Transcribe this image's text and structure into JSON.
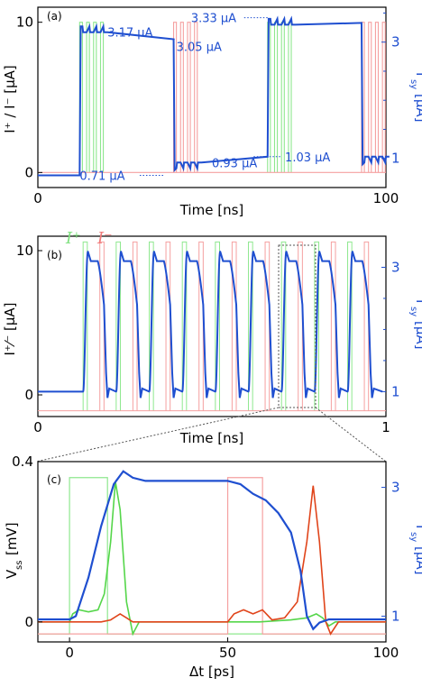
{
  "colors": {
    "ip": "#8ee88e",
    "im": "#f5a0a0",
    "isy": "#1f4fd0",
    "vss_red": "#e0441a",
    "vss_green": "#55d64a",
    "axis": "#000000"
  },
  "chart_data": [
    {
      "panel": "(a)",
      "type": "line",
      "xlabel": "Time [ns]",
      "ylabel": "I⁺ / I⁻ [μA]",
      "ylabel_right_main": "I",
      "ylabel_right_sub": "sy",
      "ylabel_right_unit": "[μA]",
      "xlim": [
        0,
        100
      ],
      "ylim": [
        -1,
        11
      ],
      "ylim_right": [
        0.5,
        3.6
      ],
      "x_ticks": [
        "0",
        "100"
      ],
      "y_ticks": [
        "0",
        "10"
      ],
      "y_right_ticks": [
        "1",
        "3"
      ],
      "grid": false,
      "annotations": [
        {
          "text": "3.17 μA",
          "value": 3.17
        },
        {
          "text": "3.05 μA",
          "value": 3.05
        },
        {
          "text": "3.33 μA",
          "value": 3.33
        },
        {
          "text": "0.71 μA",
          "value": 0.71
        },
        {
          "text": "0.93 μA",
          "value": 0.93
        },
        {
          "text": "1.03 μA",
          "value": 1.03
        }
      ],
      "pulse_trains": {
        "ip_start_ns": [
          12,
          66
        ],
        "im_start_ns": [
          39,
          93
        ],
        "pulses_per_train": 4,
        "pulse_width_ns": 0.8,
        "pulse_period_ns": 2,
        "amplitude_uA": 10
      },
      "isy_levels": {
        "low_start": 0.71,
        "high_1": 3.17,
        "high_1_end": 3.05,
        "low_1": 0.93,
        "low_1_end": 1.03,
        "high_2": 3.33,
        "low_2": 1.03
      }
    },
    {
      "panel": "(b)",
      "type": "line",
      "xlabel": "Time [ns]",
      "ylabel": "I⁺⁄⁻ [μA]",
      "ylabel_right_main": "I",
      "ylabel_right_sub": "sy",
      "ylabel_right_unit": "[μA]",
      "xlim": [
        0,
        1
      ],
      "ylim": [
        -1.5,
        11
      ],
      "ylim_right": [
        0.6,
        3.5
      ],
      "x_ticks": [
        "0",
        "1"
      ],
      "y_ticks": [
        "0",
        "10"
      ],
      "y_right_ticks": [
        "1",
        "3"
      ],
      "legend": [
        {
          "label": "I⁺",
          "color": "#7ee07e"
        },
        {
          "label": "I⁻",
          "color": "#f07a7a"
        }
      ],
      "cycle_starts": [
        0.13,
        0.225,
        0.32,
        0.415,
        0.51,
        0.605,
        0.7,
        0.795,
        0.89
      ],
      "isy_high_uA": 3.1,
      "isy_low_uA": 1.0,
      "grid": false
    },
    {
      "panel": "(c)",
      "type": "line",
      "xlabel": "Δt [ps]",
      "ylabel": "V",
      "ylabel_sub": "ss",
      "ylabel_unit": "[mV]",
      "ylabel_right_main": "I",
      "ylabel_right_sub": "sy",
      "ylabel_right_unit": "[μA]",
      "xlim": [
        -10,
        100
      ],
      "ylim": [
        -0.05,
        0.4
      ],
      "ylim_right": [
        0.6,
        3.4
      ],
      "x_ticks": [
        "0",
        "50",
        "100"
      ],
      "y_ticks": [
        "0",
        "0.4"
      ],
      "y_right_ticks": [
        "1",
        "3"
      ],
      "ip_pulse_ps": [
        0,
        12
      ],
      "im_pulse_ps": [
        50,
        61
      ],
      "isy_peak_uA": 3.25,
      "isy_plateau_uA": 3.1,
      "isy_final_uA": 0.95,
      "vss_green_peak_mV": 0.35,
      "vss_red_peak_mV": 0.34,
      "grid": false
    }
  ]
}
